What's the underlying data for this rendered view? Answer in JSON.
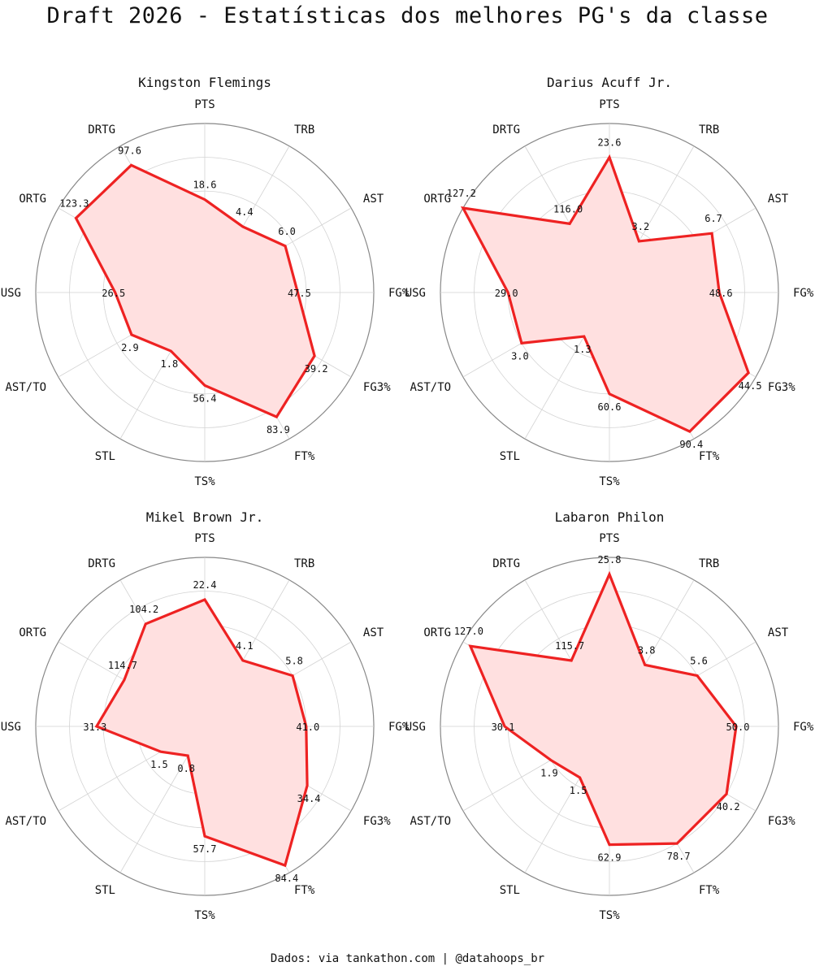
{
  "title": "Draft 2026 - Estatísticas dos melhores PG's da classe",
  "footer": "Dados: via tankathon.com | @datahoops_br",
  "colors": {
    "line": "#ee2222",
    "fill": "#ffe0e0",
    "grid": "#d3d3d3",
    "outer": "#888888"
  },
  "chart_data": [
    {
      "type": "radar",
      "title": "Kingston Flemings",
      "axes": [
        "FG%",
        "AST",
        "TRB",
        "PTS",
        "DRTG",
        "ORTG",
        "USG",
        "AST/TO",
        "STL",
        "TS%",
        "FT%",
        "FG3%"
      ],
      "values": [
        47.5,
        6.0,
        4.4,
        18.6,
        97.6,
        123.3,
        26.5,
        2.9,
        1.8,
        56.4,
        83.9,
        39.2
      ],
      "labels": [
        "47.5",
        "6.0",
        "4.4",
        "18.6",
        "97.6",
        "123.3",
        "26.5",
        "2.9",
        "1.8",
        "56.4",
        "83.9",
        "39.2"
      ],
      "normalized": [
        0.55,
        0.55,
        0.45,
        0.55,
        0.87,
        0.88,
        0.53,
        0.5,
        0.4,
        0.55,
        0.85,
        0.75
      ],
      "grid": true
    },
    {
      "type": "radar",
      "title": "Darius Acuff Jr.",
      "axes": [
        "FG%",
        "AST",
        "TRB",
        "PTS",
        "DRTG",
        "ORTG",
        "USG",
        "AST/TO",
        "STL",
        "TS%",
        "FT%",
        "FG3%"
      ],
      "values": [
        48.6,
        6.7,
        3.2,
        23.6,
        116.0,
        127.2,
        29.0,
        3.0,
        1.3,
        60.6,
        90.4,
        44.5
      ],
      "labels": [
        "48.6",
        "6.7",
        "3.2",
        "23.6",
        "116.0",
        "127.2",
        "29.0",
        "3.0",
        "1.3",
        "60.6",
        "90.4",
        "44.5"
      ],
      "normalized": [
        0.65,
        0.7,
        0.35,
        0.8,
        0.47,
        1.0,
        0.6,
        0.6,
        0.3,
        0.6,
        0.95,
        0.95
      ],
      "grid": true
    },
    {
      "type": "radar",
      "title": "Mikel Brown Jr.",
      "axes": [
        "FG%",
        "AST",
        "TRB",
        "PTS",
        "DRTG",
        "ORTG",
        "USG",
        "AST/TO",
        "STL",
        "TS%",
        "FT%",
        "FG3%"
      ],
      "values": [
        41.0,
        5.8,
        4.1,
        22.4,
        104.2,
        114.7,
        31.3,
        1.5,
        0.8,
        57.7,
        84.4,
        34.4
      ],
      "labels": [
        "41.0",
        "5.8",
        "4.1",
        "22.4",
        "104.2",
        "114.7",
        "31.3",
        "1.5",
        "0.8",
        "57.7",
        "84.4",
        "34.4"
      ],
      "normalized": [
        0.6,
        0.6,
        0.45,
        0.75,
        0.7,
        0.55,
        0.64,
        0.3,
        0.2,
        0.65,
        0.95,
        0.7
      ],
      "grid": true
    },
    {
      "type": "radar",
      "title": "Labaron Philon",
      "axes": [
        "FG%",
        "AST",
        "TRB",
        "PTS",
        "DRTG",
        "ORTG",
        "USG",
        "AST/TO",
        "STL",
        "TS%",
        "FT%",
        "FG3%"
      ],
      "values": [
        50.0,
        5.6,
        3.8,
        25.8,
        115.7,
        127.0,
        30.1,
        1.9,
        1.5,
        62.9,
        78.7,
        40.2
      ],
      "labels": [
        "50.0",
        "5.6",
        "3.8",
        "25.8",
        "115.7",
        "127.0",
        "30.1",
        "1.9",
        "1.5",
        "62.9",
        "78.7",
        "40.2"
      ],
      "normalized": [
        0.75,
        0.6,
        0.42,
        0.9,
        0.45,
        0.95,
        0.62,
        0.4,
        0.35,
        0.7,
        0.8,
        0.8
      ],
      "grid": true
    }
  ]
}
